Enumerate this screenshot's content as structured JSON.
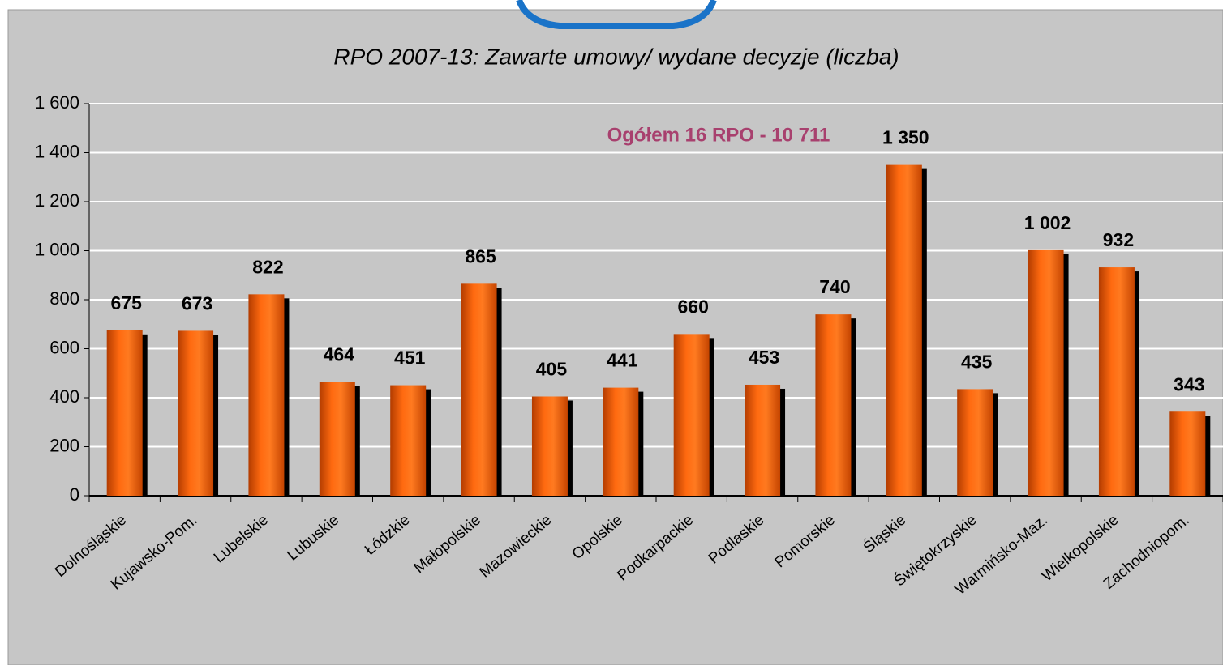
{
  "chart_data": {
    "type": "bar",
    "title": "RPO 2007-13: Zawarte umowy/ wydane decyzje (liczba)",
    "annotation": "Ogółem 16 RPO - 10 711",
    "categories": [
      "Dolnośląskie",
      "Kujawsko-Pom.",
      "Lubelskie",
      "Lubuskie",
      "Łódzkie",
      "Małopolskie",
      "Mazowieckie",
      "Opolskie",
      "Podkarpackie",
      "Podlaskie",
      "Pomorskie",
      "Śląskie",
      "Świętokrzyskie",
      "Warmińsko-Maz.",
      "Wielkopolskie",
      "Zachodniopom."
    ],
    "values": [
      675,
      673,
      822,
      464,
      451,
      865,
      405,
      441,
      660,
      453,
      740,
      1350,
      435,
      1002,
      932,
      343
    ],
    "value_labels": [
      "675",
      "673",
      "822",
      "464",
      "451",
      "865",
      "405",
      "441",
      "660",
      "453",
      "740",
      "1 350",
      "435",
      "1 002",
      "932",
      "343"
    ],
    "color": "#ff6600",
    "ylim": [
      0,
      1600
    ],
    "yticks": [
      0,
      200,
      400,
      600,
      800,
      {
        "value": 1000,
        "label": "1 000"
      },
      {
        "value": 1200,
        "label": "1 200"
      },
      {
        "value": 1400,
        "label": "1 400"
      },
      {
        "value": 1600,
        "label": "1 600"
      }
    ],
    "grid": true
  }
}
